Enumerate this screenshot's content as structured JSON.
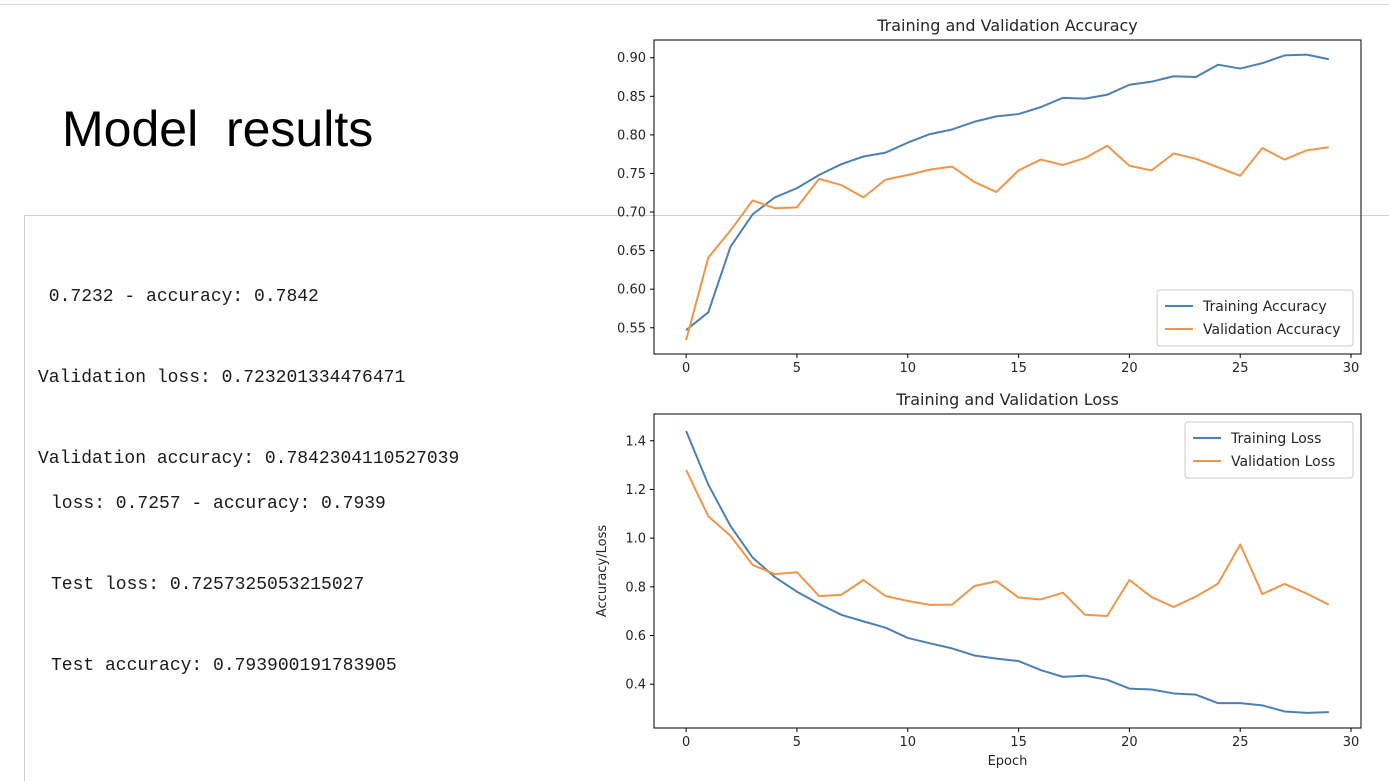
{
  "slide": {
    "title": "Model  results",
    "validation_log": [
      " 0.7232 - accuracy: 0.7842",
      "Validation loss: 0.723201334476471",
      "Validation accuracy: 0.7842304110527039"
    ],
    "test_log": [
      "loss: 0.7257 - accuracy: 0.7939",
      "Test loss: 0.7257325053215027",
      "Test accuracy: 0.793900191783905"
    ]
  },
  "chart_data": [
    {
      "type": "line",
      "title": "Training and Validation Accuracy",
      "xlabel": "",
      "ylabel": "",
      "xlim": [
        -1.45,
        30.45
      ],
      "ylim": [
        0.516,
        0.923
      ],
      "xticks": [
        0,
        5,
        10,
        15,
        20,
        25,
        30
      ],
      "yticks": [
        0.55,
        0.6,
        0.65,
        0.7,
        0.75,
        0.8,
        0.85,
        0.9
      ],
      "ytick_labels": [
        "0.55",
        "0.60",
        "0.65",
        "0.70",
        "0.75",
        "0.80",
        "0.85",
        "0.90"
      ],
      "legend": "lower-right",
      "grid": false,
      "x": [
        0,
        1,
        2,
        3,
        4,
        5,
        6,
        7,
        8,
        9,
        10,
        11,
        12,
        13,
        14,
        15,
        16,
        17,
        18,
        19,
        20,
        21,
        22,
        23,
        24,
        25,
        26,
        27,
        28,
        29
      ],
      "series": [
        {
          "name": "Training Accuracy",
          "color": "#4c80b5",
          "values": [
            0.547,
            0.57,
            0.655,
            0.697,
            0.719,
            0.731,
            0.748,
            0.762,
            0.772,
            0.777,
            0.79,
            0.801,
            0.807,
            0.817,
            0.824,
            0.827,
            0.836,
            0.848,
            0.847,
            0.852,
            0.865,
            0.869,
            0.876,
            0.875,
            0.891,
            0.886,
            0.893,
            0.903,
            0.904,
            0.898
          ]
        },
        {
          "name": "Validation Accuracy",
          "color": "#f0964a",
          "values": [
            0.534,
            0.641,
            0.676,
            0.715,
            0.705,
            0.706,
            0.743,
            0.735,
            0.719,
            0.742,
            0.748,
            0.755,
            0.759,
            0.739,
            0.726,
            0.754,
            0.768,
            0.761,
            0.77,
            0.786,
            0.76,
            0.754,
            0.776,
            0.769,
            0.758,
            0.747,
            0.783,
            0.768,
            0.78,
            0.784
          ]
        }
      ]
    },
    {
      "type": "line",
      "title": "Training and Validation Loss",
      "xlabel": "Epoch",
      "ylabel": "Accuracy/Loss",
      "xlim": [
        -1.45,
        30.45
      ],
      "ylim": [
        0.22,
        1.51
      ],
      "xticks": [
        0,
        5,
        10,
        15,
        20,
        25,
        30
      ],
      "yticks": [
        0.4,
        0.6,
        0.8,
        1.0,
        1.2,
        1.4
      ],
      "ytick_labels": [
        "0.4",
        "0.6",
        "0.8",
        "1.0",
        "1.2",
        "1.4"
      ],
      "legend": "upper-right",
      "grid": false,
      "x": [
        0,
        1,
        2,
        3,
        4,
        5,
        6,
        7,
        8,
        9,
        10,
        11,
        12,
        13,
        14,
        15,
        16,
        17,
        18,
        19,
        20,
        21,
        22,
        23,
        24,
        25,
        26,
        27,
        28,
        29
      ],
      "series": [
        {
          "name": "Training Loss",
          "color": "#4c80b5",
          "values": [
            1.44,
            1.22,
            1.05,
            0.92,
            0.84,
            0.78,
            0.73,
            0.685,
            0.658,
            0.632,
            0.59,
            0.568,
            0.547,
            0.518,
            0.505,
            0.495,
            0.458,
            0.43,
            0.435,
            0.418,
            0.382,
            0.378,
            0.362,
            0.357,
            0.322,
            0.322,
            0.313,
            0.288,
            0.282,
            0.285
          ]
        },
        {
          "name": "Validation Loss",
          "color": "#f0964a",
          "values": [
            1.28,
            1.09,
            1.01,
            0.89,
            0.852,
            0.86,
            0.762,
            0.767,
            0.828,
            0.762,
            0.742,
            0.726,
            0.727,
            0.803,
            0.823,
            0.756,
            0.748,
            0.776,
            0.685,
            0.68,
            0.828,
            0.758,
            0.717,
            0.76,
            0.813,
            0.974,
            0.77,
            0.812,
            0.772,
            0.727
          ]
        }
      ]
    }
  ]
}
